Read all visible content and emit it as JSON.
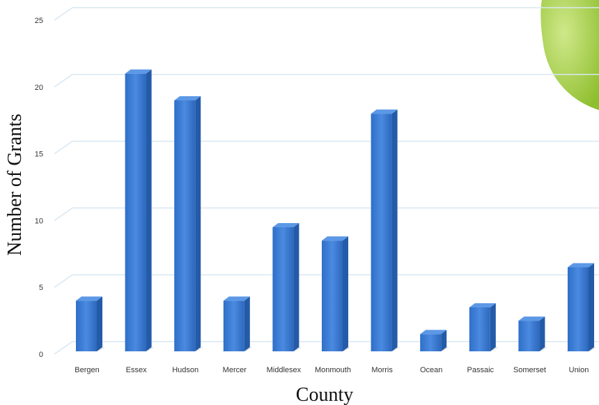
{
  "chart_data": {
    "type": "bar",
    "xlabel": "County",
    "ylabel": "Number of Grants",
    "ylim": [
      0,
      25
    ],
    "yticks": [
      0,
      5,
      10,
      15,
      20,
      25
    ],
    "grid": true,
    "categories": [
      "Bergen",
      "Essex",
      "Hudson",
      "Mercer",
      "Middlesex",
      "Monmouth",
      "Morris",
      "Ocean",
      "Passaic",
      "Somerset",
      "Union"
    ],
    "values": [
      4,
      21,
      19,
      4,
      9.5,
      8.5,
      18,
      1.5,
      3.5,
      2.5,
      6.5
    ],
    "colors": {
      "bar_front": "#3a7bd5",
      "bar_side": "#245ba8",
      "bar_top": "#5c98e6",
      "grid": "#d9e7f1",
      "decoration": "#a9cf4f"
    }
  }
}
